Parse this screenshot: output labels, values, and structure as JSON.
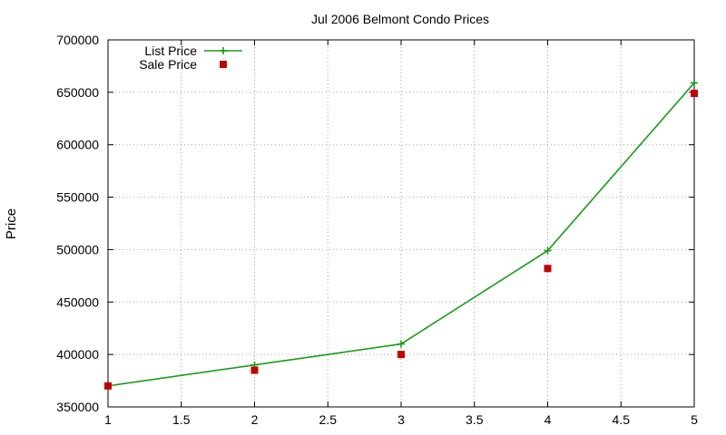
{
  "chart_data": {
    "type": "line",
    "title": "Jul 2006 Belmont Condo Prices",
    "xlabel": "",
    "ylabel": "Price",
    "xlim": [
      1,
      5
    ],
    "ylim": [
      350000,
      700000
    ],
    "x_ticks": [
      "1",
      "1.5",
      "2",
      "2.5",
      "3",
      "3.5",
      "4",
      "4.5",
      "5"
    ],
    "y_ticks": [
      "350000",
      "400000",
      "450000",
      "500000",
      "550000",
      "600000",
      "650000",
      "700000"
    ],
    "grid": true,
    "legend_position": "top-left",
    "series": [
      {
        "name": "List Price",
        "style": "linespoints",
        "color": "#1a9b1a",
        "marker": "plus",
        "x": [
          1,
          2,
          3,
          4,
          5
        ],
        "y": [
          370000,
          390000,
          410000,
          499000,
          659000
        ]
      },
      {
        "name": "Sale Price",
        "style": "points",
        "color": "#c00000",
        "marker": "square",
        "x": [
          1,
          2,
          3,
          4,
          5
        ],
        "y": [
          370000,
          385000,
          400000,
          482000,
          649000
        ]
      }
    ]
  }
}
